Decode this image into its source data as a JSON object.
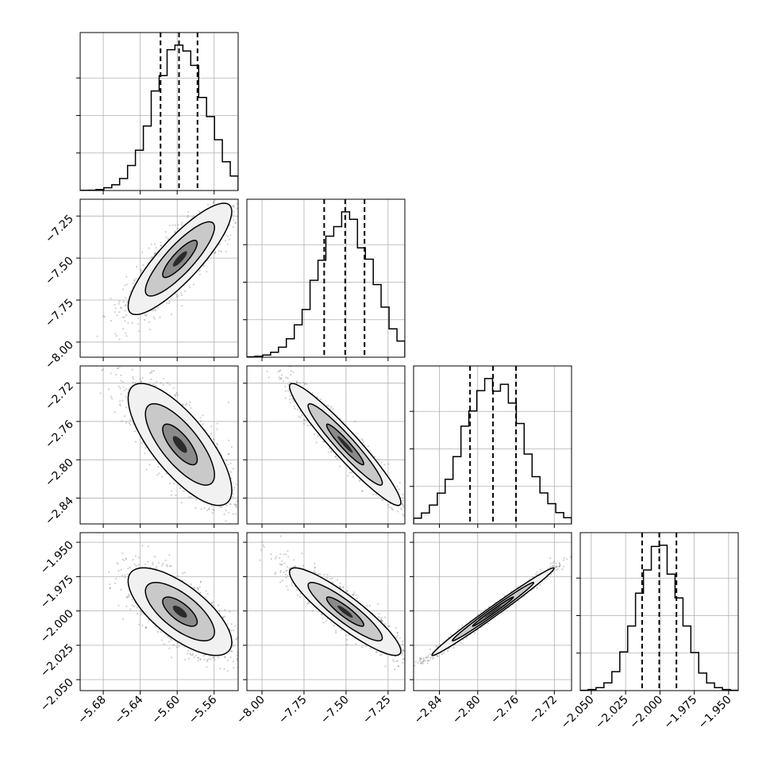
{
  "chart_data": {
    "type": "corner",
    "title": "",
    "parameters": [
      {
        "range": [
          -5.705,
          -5.534
        ],
        "ticks": [
          -5.68,
          -5.64,
          -5.6,
          -5.56
        ],
        "tick_labels": [
          "−5.68",
          "−5.64",
          "−5.60",
          "−5.56"
        ],
        "center": -5.597,
        "spread": 0.022,
        "quantiles": [
          -5.618,
          -5.598,
          -5.578
        ]
      },
      {
        "range": [
          -8.09,
          -7.15
        ],
        "ticks": [
          -8.0,
          -7.75,
          -7.5,
          -7.25
        ],
        "tick_labels": [
          "−8.00",
          "−7.75",
          "−7.50",
          "−7.25"
        ],
        "center": -7.505,
        "spread": 0.13,
        "quantiles": [
          -7.63,
          -7.505,
          -7.39
        ]
      },
      {
        "range": [
          -2.867,
          -2.702
        ],
        "ticks": [
          -2.84,
          -2.8,
          -2.76,
          -2.72
        ],
        "tick_labels": [
          "−2.84",
          "−2.80",
          "−2.76",
          "−2.72"
        ],
        "center": -2.784,
        "spread": 0.025,
        "quantiles": [
          -2.808,
          -2.784,
          -2.76
        ]
      },
      {
        "range": [
          -2.058,
          -1.943
        ],
        "ticks": [
          -2.05,
          -2.025,
          -2.0,
          -1.975,
          -1.95
        ],
        "tick_labels": [
          "−2.050",
          "−2.025",
          "−2.000",
          "−1.975",
          "−1.950"
        ],
        "center": -2.0005,
        "spread": 0.0125,
        "quantiles": [
          -2.013,
          -2.0005,
          -1.988
        ]
      }
    ],
    "correlations": [
      [
        1,
        0.85,
        -0.75,
        -0.7
      ],
      [
        0.85,
        1,
        -0.95,
        -0.9
      ],
      [
        -0.75,
        -0.95,
        1,
        0.99
      ],
      [
        -0.7,
        -0.9,
        0.99,
        1
      ]
    ],
    "histogram_bins": 20,
    "histogram_style": "step",
    "quantile_lines": "dashed",
    "contour_levels": 3,
    "grid": true,
    "legend": "none",
    "colors": {
      "line": "#000000",
      "scatter": "#777777",
      "grid": "#b0b0b0"
    }
  }
}
